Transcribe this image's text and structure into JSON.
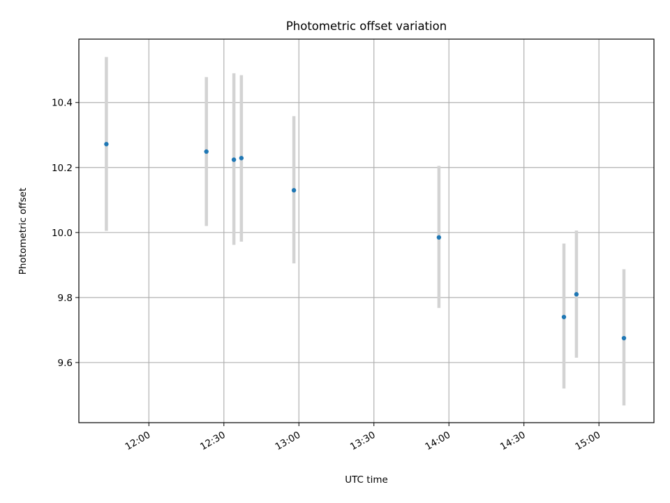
{
  "chart_data": {
    "type": "scatter",
    "title": "Photometric offset variation",
    "xlabel": "UTC time",
    "ylabel": "Photometric offset",
    "x_tick_labels": [
      "12:00",
      "12:30",
      "13:00",
      "13:30",
      "14:00",
      "14:30",
      "15:00"
    ],
    "y_tick_labels": [
      "9.6",
      "9.8",
      "10.0",
      "10.2",
      "10.4"
    ],
    "xlim": [
      "11:32",
      "15:22"
    ],
    "ylim": [
      9.415,
      10.595
    ],
    "grid": true,
    "points": [
      {
        "x": "11:43",
        "y": 10.272,
        "err_low": 10.005,
        "err_high": 10.54
      },
      {
        "x": "12:23",
        "y": 10.249,
        "err_low": 10.02,
        "err_high": 10.478
      },
      {
        "x": "12:34",
        "y": 10.224,
        "err_low": 9.962,
        "err_high": 10.49
      },
      {
        "x": "12:37",
        "y": 10.229,
        "err_low": 9.972,
        "err_high": 10.484
      },
      {
        "x": "12:58",
        "y": 10.13,
        "err_low": 9.905,
        "err_high": 10.358
      },
      {
        "x": "13:56",
        "y": 9.985,
        "err_low": 9.768,
        "err_high": 10.205
      },
      {
        "x": "14:46",
        "y": 9.74,
        "err_low": 9.52,
        "err_high": 9.966
      },
      {
        "x": "14:51",
        "y": 9.81,
        "err_low": 9.615,
        "err_high": 10.006
      },
      {
        "x": "15:10",
        "y": 9.675,
        "err_low": 9.468,
        "err_high": 9.887
      }
    ],
    "colors": {
      "marker": "#1f77b4",
      "errorbar": "#d3d3d3",
      "grid": "#b0b0b0",
      "axes": "#000000"
    }
  }
}
